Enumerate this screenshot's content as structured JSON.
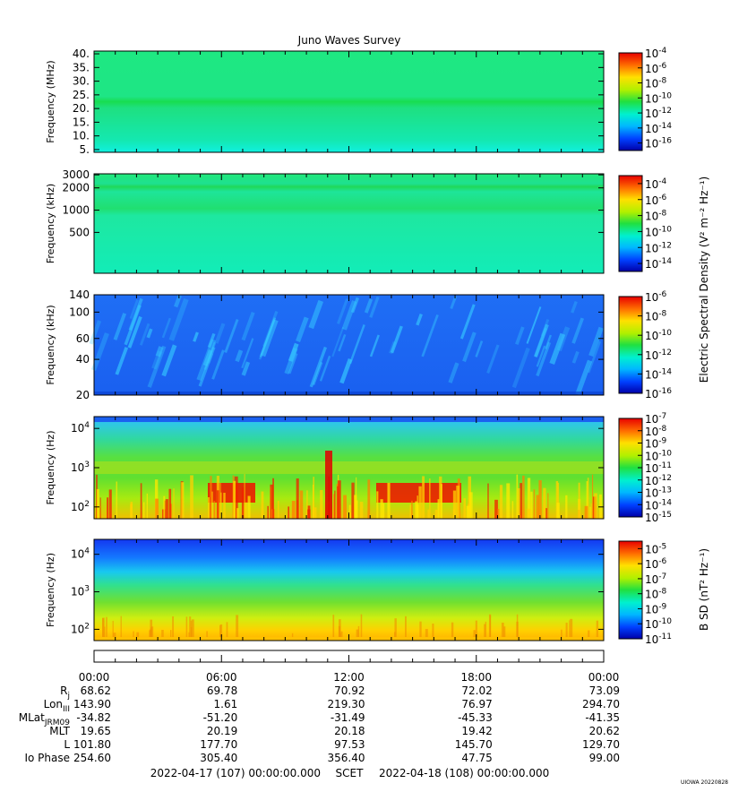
{
  "chart_data": {
    "type": "heatmap",
    "title": "Juno Waves Survey",
    "panels": [
      {
        "id": "hfr-high",
        "ylabel": "Frequency (MHz)",
        "yscale": "linear",
        "ylim": [
          4,
          41
        ],
        "yticks": [
          {
            "v": 5,
            "label": "5."
          },
          {
            "v": 10,
            "label": "10."
          },
          {
            "v": 15,
            "label": "15."
          },
          {
            "v": 20,
            "label": "20."
          },
          {
            "v": 25,
            "label": "25."
          },
          {
            "v": 30,
            "label": "30."
          },
          {
            "v": 35,
            "label": "35."
          },
          {
            "v": 40,
            "label": "40."
          }
        ],
        "colorbar": {
          "scale": "log",
          "range": [
            -17,
            -4
          ],
          "ticks": [
            {
              "exp": "-4",
              "v": -4
            },
            {
              "exp": "-6",
              "v": -6
            },
            {
              "exp": "-8",
              "v": -8
            },
            {
              "exp": "-10",
              "v": -10
            },
            {
              "exp": "-12",
              "v": -12
            },
            {
              "exp": "-14",
              "v": -14
            },
            {
              "exp": "-16",
              "v": -16
            }
          ]
        }
      },
      {
        "id": "hfr-low",
        "ylabel": "Frequency (kHz)",
        "yscale": "log",
        "ylim": [
          140,
          3100
        ],
        "yticks": [
          {
            "v": 500,
            "label": "500"
          },
          {
            "v": 1000,
            "label": "1000"
          },
          {
            "v": 2000,
            "label": "2000"
          },
          {
            "v": 3000,
            "label": "3000"
          }
        ],
        "colorbar": {
          "scale": "log",
          "range": [
            -15,
            -3
          ],
          "ticks": [
            {
              "exp": "-4",
              "v": -4
            },
            {
              "exp": "-6",
              "v": -6
            },
            {
              "exp": "-8",
              "v": -8
            },
            {
              "exp": "-10",
              "v": -10
            },
            {
              "exp": "-12",
              "v": -12
            },
            {
              "exp": "-14",
              "v": -14
            }
          ]
        }
      },
      {
        "id": "lfr-high",
        "ylabel": "Frequency (kHz)",
        "yscale": "log",
        "ylim": [
          20,
          140
        ],
        "yticks": [
          {
            "v": 20,
            "label": "20"
          },
          {
            "v": 40,
            "label": "40"
          },
          {
            "v": 60,
            "label": "60"
          },
          {
            "v": 100,
            "label": "100"
          },
          {
            "v": 140,
            "label": "140"
          }
        ],
        "colorbar": {
          "scale": "log",
          "range": [
            -16,
            -6
          ],
          "ticks": [
            {
              "exp": "-6",
              "v": -6
            },
            {
              "exp": "-8",
              "v": -8
            },
            {
              "exp": "-10",
              "v": -10
            },
            {
              "exp": "-12",
              "v": -12
            },
            {
              "exp": "-14",
              "v": -14
            },
            {
              "exp": "-16",
              "v": -16
            }
          ]
        }
      },
      {
        "id": "lfr-low",
        "ylabel": "Frequency (Hz)",
        "yscale": "log",
        "ylim": [
          50,
          20000
        ],
        "yticks": [
          {
            "v": 100,
            "base": "10",
            "exp": "2"
          },
          {
            "v": 1000,
            "base": "10",
            "exp": "3"
          },
          {
            "v": 10000,
            "base": "10",
            "exp": "4"
          }
        ],
        "colorbar": {
          "scale": "log",
          "range": [
            -15,
            -7
          ],
          "ticks": [
            {
              "exp": "-7",
              "v": -7
            },
            {
              "exp": "-8",
              "v": -8
            },
            {
              "exp": "-9",
              "v": -9
            },
            {
              "exp": "-10",
              "v": -10
            },
            {
              "exp": "-11",
              "v": -11
            },
            {
              "exp": "-12",
              "v": -12
            },
            {
              "exp": "-13",
              "v": -13
            },
            {
              "exp": "-14",
              "v": -14
            },
            {
              "exp": "-15",
              "v": -15
            }
          ]
        }
      },
      {
        "id": "magnetic",
        "ylabel": "Frequency (Hz)",
        "yscale": "log",
        "ylim": [
          50,
          25000
        ],
        "yticks": [
          {
            "v": 100,
            "base": "10",
            "exp": "2"
          },
          {
            "v": 1000,
            "base": "10",
            "exp": "3"
          },
          {
            "v": 10000,
            "base": "10",
            "exp": "4"
          }
        ],
        "colorbar": {
          "scale": "log",
          "range": [
            -11,
            -4.5
          ],
          "ticks": [
            {
              "exp": "-5",
              "v": -5
            },
            {
              "exp": "-6",
              "v": -6
            },
            {
              "exp": "-7",
              "v": -7
            },
            {
              "exp": "-8",
              "v": -8
            },
            {
              "exp": "-9",
              "v": -9
            },
            {
              "exp": "-10",
              "v": -10
            },
            {
              "exp": "-11",
              "v": -11
            }
          ]
        }
      }
    ],
    "colorbar_labels": {
      "electric": "Electric Spectral Density (V² m⁻² Hz⁻¹)",
      "magnetic": "B SD (nT² Hz⁻¹)"
    },
    "x_ticks": [
      "00:00",
      "06:00",
      "12:00",
      "18:00",
      "00:00"
    ],
    "ephemeris": [
      {
        "label": "Rj",
        "values": [
          "68.62",
          "69.78",
          "70.92",
          "72.02",
          "73.09"
        ]
      },
      {
        "label": "LonIII",
        "values": [
          "143.90",
          "1.61",
          "219.30",
          "76.97",
          "294.70"
        ]
      },
      {
        "label": "MLatJRM09",
        "values": [
          "-34.82",
          "-51.20",
          "-31.49",
          "-45.33",
          "-41.35"
        ]
      },
      {
        "label": "MLT",
        "values": [
          "19.65",
          "20.19",
          "20.18",
          "19.42",
          "20.62"
        ]
      },
      {
        "label": "L",
        "values": [
          "101.80",
          "177.70",
          "97.53",
          "145.70",
          "129.70"
        ]
      },
      {
        "label": "Io Phase",
        "values": [
          "254.60",
          "305.40",
          "356.40",
          "47.75",
          "99.00"
        ]
      }
    ],
    "time_range": {
      "start": "2022-04-17 (107) 00:00:00.000",
      "scet": "SCET",
      "end": "2022-04-18 (108) 00:00:00.000"
    },
    "footer_tag": "UIOWA 20220828"
  }
}
